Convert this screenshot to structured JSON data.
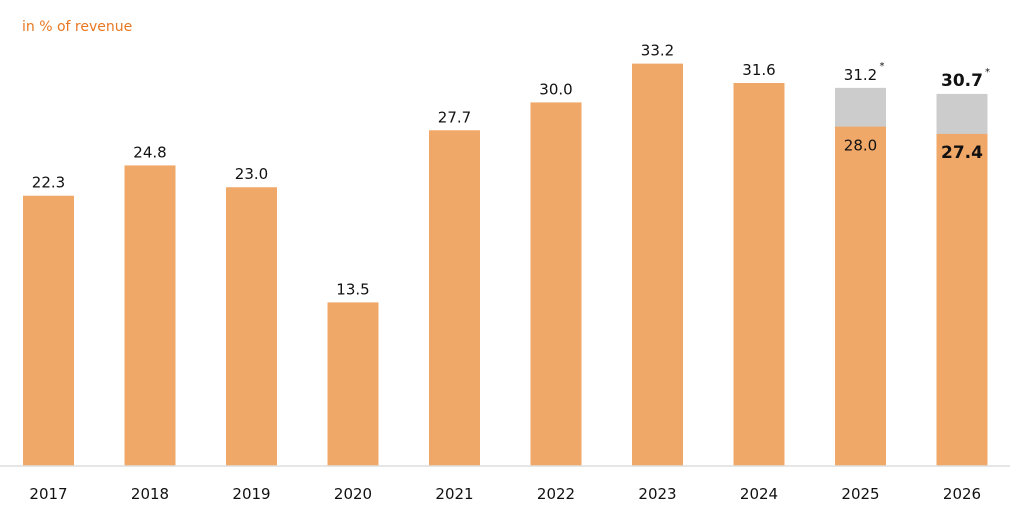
{
  "chart_data": {
    "type": "bar",
    "unit_label": "in % of revenue",
    "categories": [
      "2017",
      "2018",
      "2019",
      "2020",
      "2021",
      "2022",
      "2023",
      "2024",
      "2025",
      "2026"
    ],
    "series": [
      {
        "values": [
          22.3,
          24.8,
          23.0,
          13.5,
          27.7,
          30.0,
          33.2,
          31.6,
          28.0,
          27.4
        ],
        "labels": [
          "22.3",
          "24.8",
          "23.0",
          "13.5",
          "27.7",
          "30.0",
          "33.2",
          "31.6",
          "28.0",
          "27.4"
        ],
        "color": "#f0a868"
      },
      {
        "values": [
          null,
          null,
          null,
          null,
          null,
          null,
          null,
          null,
          31.2,
          30.7
        ],
        "labels": [
          "",
          "",
          "",
          "",
          "",
          "",
          "",
          "",
          "31.2",
          "30.7"
        ],
        "color": "#cccccc"
      }
    ],
    "footnote_marker": "*",
    "marked_categories": [
      "2025",
      "2026"
    ],
    "bold_categories": [
      "2026"
    ],
    "ylim": [
      0,
      35
    ],
    "grid": false,
    "legend": "none"
  }
}
